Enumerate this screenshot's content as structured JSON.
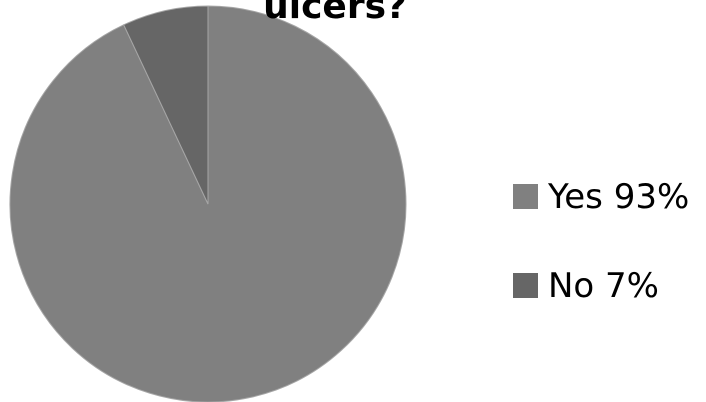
{
  "chart_data": {
    "type": "pie",
    "title": "ulcers?",
    "slices": [
      {
        "label": "Yes",
        "value": 93,
        "legend_text": "Yes 93%",
        "color": "#808080"
      },
      {
        "label": "No",
        "value": 7,
        "legend_text": "No 7%",
        "color": "#666666"
      }
    ],
    "legend_placement": "right"
  }
}
